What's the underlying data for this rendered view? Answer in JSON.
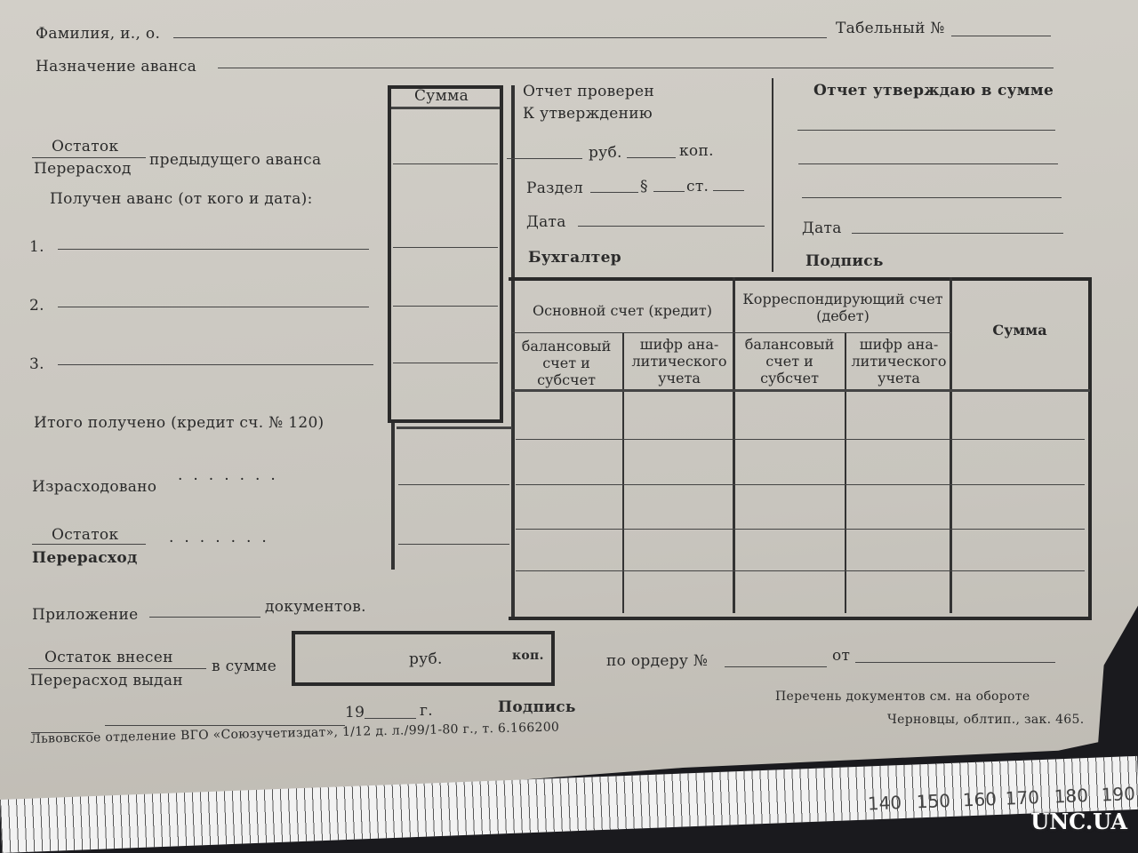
{
  "header": {
    "fio_label": "Фамилия, и., о.",
    "tabel_label": "Табельный №",
    "naznachenie_label": "Назначение аванса"
  },
  "left": {
    "summa_header": "Сумма",
    "ostatok": "Остаток",
    "pererashod": "Перерасход",
    "prev_avans": "предыдущего аванса",
    "poluchen": "Получен аванс (от кого и дата):",
    "items": [
      "1.",
      "2.",
      "3."
    ],
    "itogo": "Итого получено (кредит сч. № 120)",
    "izrashodovano": "Израсходовано",
    "ostatok2": "Остаток",
    "pererashod2": "Перерасход",
    "prilozhenie": "Приложение",
    "dokumentov": "документов."
  },
  "check": {
    "proveren": "Отчет проверен",
    "k_utv": "К утверждению",
    "rub": "руб.",
    "kop": "коп.",
    "razdel": "Раздел",
    "paragraph": "§",
    "st": "ст.",
    "data": "Дата",
    "buhgalter": "Бухгалтер"
  },
  "approve": {
    "title": "Отчет утверждаю в сумме",
    "data": "Дата",
    "podpis": "Подпись"
  },
  "table": {
    "osnovnoi": "Основной счет (кредит)",
    "korr": "Корреспондирующий счет (дебет)",
    "summa": "Сумма",
    "balans": "балансовый счет и субсчет",
    "shifr": "шифр ана-литического учета",
    "balans2": "балансовый счет и субсчет",
    "shifr2": "шифр ана-литического учета"
  },
  "bottom": {
    "ostatok_vnesen": "Остаток внесен",
    "pererashod_vydan": "Перерасход выдан",
    "v_summe": "в сумме",
    "rub": "руб.",
    "kop": "коп.",
    "po_orderu": "по ордеру №",
    "ot": "от",
    "year": "19",
    "g": "г.",
    "podpis": "Подпись",
    "perechen": "Перечень документов см. на обороте",
    "chernovcy": "Черновцы, облтип., зак. 465.",
    "imprint": "Львовское отделение ВГО «Союзучетиздат», 1/12 д. л./99/1-80 г., т. 6.166200"
  },
  "ruler": {
    "numbers": [
      "140",
      "150",
      "160",
      "170",
      "180",
      "190"
    ]
  },
  "watermark": "UNC.UA"
}
